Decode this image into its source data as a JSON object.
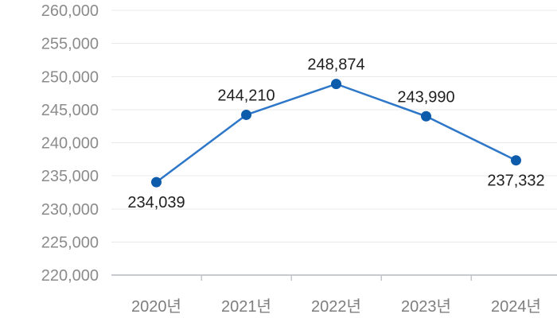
{
  "chart_data": {
    "type": "line",
    "title": "",
    "xlabel": "",
    "ylabel": "",
    "categories": [
      "2020년",
      "2021년",
      "2022년",
      "2023년",
      "2024년"
    ],
    "values": [
      234039,
      244210,
      248874,
      243990,
      237332
    ],
    "point_labels": [
      "234,039",
      "244,210",
      "248,874",
      "243,990",
      "237,332"
    ],
    "point_label_positions": [
      "below",
      "above",
      "above",
      "above",
      "below"
    ],
    "ylim": [
      220000,
      260000
    ],
    "ytick_step": 5000,
    "ytick_labels": [
      "220,000",
      "225,000",
      "230,000",
      "235,000",
      "240,000",
      "245,000",
      "250,000",
      "255,000",
      "260,000"
    ],
    "grid": true,
    "legend": "none",
    "colors": {
      "background": "#ffffff",
      "line": "#2e77c8",
      "marker": "#0d5cac",
      "grid": "#e9e9e9",
      "axis": "#c7cbd1",
      "tick": "#c2c6cb",
      "ytick_text": "#8b8b8b",
      "xtick_text": "#7e7e7e",
      "value_text": "#212121"
    }
  }
}
